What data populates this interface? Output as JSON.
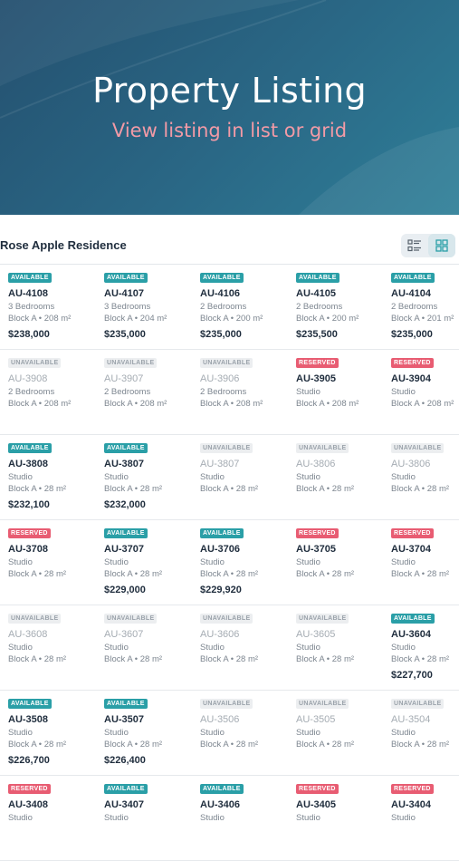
{
  "hero": {
    "title": "Property Listing",
    "subtitle": "View listing in list or grid",
    "colors": {
      "background": "#24506f",
      "subtitle": "#f29aa6"
    }
  },
  "project": {
    "title": "Rose Apple Residence"
  },
  "view_toggle": {
    "list_icon": "list-view-icon",
    "grid_icon": "grid-view-icon",
    "active": "grid"
  },
  "status_colors": {
    "AVAILABLE": "#2a9fa7",
    "RESERVED": "#e85c72",
    "UNAVAILABLE": "#eceef0"
  },
  "units": [
    [
      {
        "status": "AVAILABLE",
        "unit": "AU-4108",
        "rooms": "3 Bedrooms",
        "size": "Block A • 208 m²",
        "price": "$238,000"
      },
      {
        "status": "AVAILABLE",
        "unit": "AU-4107",
        "rooms": "3 Bedrooms",
        "size": "Block A • 204 m²",
        "price": "$235,000"
      },
      {
        "status": "AVAILABLE",
        "unit": "AU-4106",
        "rooms": "2 Bedrooms",
        "size": "Block A • 200 m²",
        "price": "$235,000"
      },
      {
        "status": "AVAILABLE",
        "unit": "AU-4105",
        "rooms": "2 Bedrooms",
        "size": "Block A • 200 m²",
        "price": "$235,500"
      },
      {
        "status": "AVAILABLE",
        "unit": "AU-4104",
        "rooms": "2 Bedrooms",
        "size": "Block A • 201 m²",
        "price": "$235,000"
      }
    ],
    [
      {
        "status": "UNAVAILABLE",
        "unit": "AU-3908",
        "rooms": "2 Bedrooms",
        "size": "Block A • 208 m²",
        "price": ""
      },
      {
        "status": "UNAVAILABLE",
        "unit": "AU-3907",
        "rooms": "2 Bedrooms",
        "size": "Block A • 208 m²",
        "price": ""
      },
      {
        "status": "UNAVAILABLE",
        "unit": "AU-3906",
        "rooms": "2 Bedrooms",
        "size": "Block A • 208 m²",
        "price": ""
      },
      {
        "status": "RESERVED",
        "unit": "AU-3905",
        "rooms": "Studio",
        "size": "Block A • 208 m²",
        "price": ""
      },
      {
        "status": "RESERVED",
        "unit": "AU-3904",
        "rooms": "Studio",
        "size": "Block A • 208 m²",
        "price": ""
      }
    ],
    [
      {
        "status": "AVAILABLE",
        "unit": "AU-3808",
        "rooms": "Studio",
        "size": "Block A • 28 m²",
        "price": "$232,100"
      },
      {
        "status": "AVAILABLE",
        "unit": "AU-3807",
        "rooms": "Studio",
        "size": "Block A • 28 m²",
        "price": "$232,000"
      },
      {
        "status": "UNAVAILABLE",
        "unit": "AU-3807",
        "rooms": "Studio",
        "size": "Block A • 28 m²",
        "price": ""
      },
      {
        "status": "UNAVAILABLE",
        "unit": "AU-3806",
        "rooms": "Studio",
        "size": "Block A • 28 m²",
        "price": ""
      },
      {
        "status": "UNAVAILABLE",
        "unit": "AU-3806",
        "rooms": "Studio",
        "size": "Block A • 28 m²",
        "price": ""
      }
    ],
    [
      {
        "status": "RESERVED",
        "unit": "AU-3708",
        "rooms": "Studio",
        "size": "Block A • 28 m²",
        "price": ""
      },
      {
        "status": "AVAILABLE",
        "unit": "AU-3707",
        "rooms": "Studio",
        "size": "Block A • 28 m²",
        "price": "$229,000"
      },
      {
        "status": "AVAILABLE",
        "unit": "AU-3706",
        "rooms": "Studio",
        "size": "Block A • 28 m²",
        "price": "$229,920"
      },
      {
        "status": "RESERVED",
        "unit": "AU-3705",
        "rooms": "Studio",
        "size": "Block A • 28 m²",
        "price": ""
      },
      {
        "status": "RESERVED",
        "unit": "AU-3704",
        "rooms": "Studio",
        "size": "Block A • 28 m²",
        "price": ""
      }
    ],
    [
      {
        "status": "UNAVAILABLE",
        "unit": "AU-3608",
        "rooms": "Studio",
        "size": "Block A • 28 m²",
        "price": ""
      },
      {
        "status": "UNAVAILABLE",
        "unit": "AU-3607",
        "rooms": "Studio",
        "size": "Block A • 28 m²",
        "price": ""
      },
      {
        "status": "UNAVAILABLE",
        "unit": "AU-3606",
        "rooms": "Studio",
        "size": "Block A • 28 m²",
        "price": ""
      },
      {
        "status": "UNAVAILABLE",
        "unit": "AU-3605",
        "rooms": "Studio",
        "size": "Block A • 28 m²",
        "price": ""
      },
      {
        "status": "AVAILABLE",
        "unit": "AU-3604",
        "rooms": "Studio",
        "size": "Block A • 28 m²",
        "price": "$227,700"
      }
    ],
    [
      {
        "status": "AVAILABLE",
        "unit": "AU-3508",
        "rooms": "Studio",
        "size": "Block A • 28 m²",
        "price": "$226,700"
      },
      {
        "status": "AVAILABLE",
        "unit": "AU-3507",
        "rooms": "Studio",
        "size": "Block A • 28 m²",
        "price": "$226,400"
      },
      {
        "status": "UNAVAILABLE",
        "unit": "AU-3506",
        "rooms": "Studio",
        "size": "Block A • 28 m²",
        "price": ""
      },
      {
        "status": "UNAVAILABLE",
        "unit": "AU-3505",
        "rooms": "Studio",
        "size": "Block A • 28 m²",
        "price": ""
      },
      {
        "status": "UNAVAILABLE",
        "unit": "AU-3504",
        "rooms": "Studio",
        "size": "Block A • 28 m²",
        "price": ""
      }
    ],
    [
      {
        "status": "RESERVED",
        "unit": "AU-3408",
        "rooms": "Studio",
        "size": "",
        "price": ""
      },
      {
        "status": "AVAILABLE",
        "unit": "AU-3407",
        "rooms": "Studio",
        "size": "",
        "price": ""
      },
      {
        "status": "AVAILABLE",
        "unit": "AU-3406",
        "rooms": "Studio",
        "size": "",
        "price": ""
      },
      {
        "status": "RESERVED",
        "unit": "AU-3405",
        "rooms": "Studio",
        "size": "",
        "price": ""
      },
      {
        "status": "RESERVED",
        "unit": "AU-3404",
        "rooms": "Studio",
        "size": "",
        "price": ""
      }
    ]
  ]
}
